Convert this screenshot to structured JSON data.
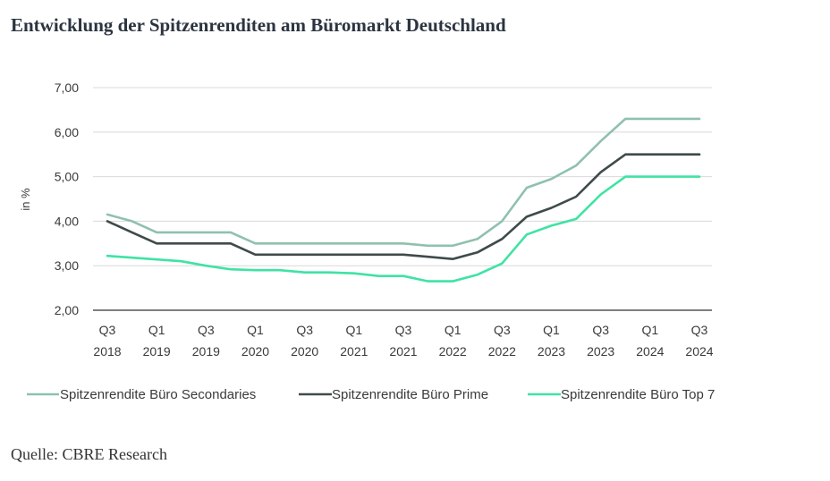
{
  "title": "Entwicklung der Spitzenrenditen am Büromarkt Deutschland",
  "source": "Quelle: CBRE Research",
  "colors": {
    "secondaries": "#8fc1ae",
    "prime": "#404a4b",
    "top7": "#3fe3a3",
    "grid": "#d8d8d8",
    "baseline": "#555555"
  },
  "chart_data": {
    "type": "line",
    "ylabel": "in %",
    "ylim": [
      2,
      7
    ],
    "yticks": [
      2,
      3,
      4,
      5,
      6,
      7
    ],
    "ytick_labels": [
      "2,00",
      "3,00",
      "4,00",
      "5,00",
      "6,00",
      "7,00"
    ],
    "grid": true,
    "legend_position": "bottom",
    "x": [
      "Q3 2018",
      "Q4 2018",
      "Q1 2019",
      "Q2 2019",
      "Q3 2019",
      "Q4 2019",
      "Q1 2020",
      "Q2 2020",
      "Q3 2020",
      "Q4 2020",
      "Q1 2021",
      "Q2 2021",
      "Q3 2021",
      "Q4 2021",
      "Q1 2022",
      "Q2 2022",
      "Q3 2022",
      "Q4 2022",
      "Q1 2023",
      "Q2 2023",
      "Q3 2023",
      "Q4 2023",
      "Q1 2024",
      "Q2 2024",
      "Q3 2024"
    ],
    "xtick_labels": [
      {
        "quarter": "Q3",
        "year": "2018"
      },
      {
        "quarter": "Q1",
        "year": "2019"
      },
      {
        "quarter": "Q3",
        "year": "2019"
      },
      {
        "quarter": "Q1",
        "year": "2020"
      },
      {
        "quarter": "Q3",
        "year": "2020"
      },
      {
        "quarter": "Q1",
        "year": "2021"
      },
      {
        "quarter": "Q3",
        "year": "2021"
      },
      {
        "quarter": "Q1",
        "year": "2022"
      },
      {
        "quarter": "Q3",
        "year": "2022"
      },
      {
        "quarter": "Q1",
        "year": "2023"
      },
      {
        "quarter": "Q3",
        "year": "2023"
      },
      {
        "quarter": "Q1",
        "year": "2024"
      },
      {
        "quarter": "Q3",
        "year": "2024"
      }
    ],
    "series": [
      {
        "name": "Spitzenrendite Büro Secondaries",
        "color_key": "secondaries",
        "values": [
          4.15,
          4.0,
          3.75,
          3.75,
          3.75,
          3.75,
          3.5,
          3.5,
          3.5,
          3.5,
          3.5,
          3.5,
          3.5,
          3.45,
          3.45,
          3.6,
          4.0,
          4.75,
          4.95,
          5.25,
          5.8,
          6.3,
          6.3,
          6.3,
          6.3
        ]
      },
      {
        "name": "Spitzenrendite Büro Prime",
        "color_key": "prime",
        "values": [
          4.0,
          3.75,
          3.5,
          3.5,
          3.5,
          3.5,
          3.25,
          3.25,
          3.25,
          3.25,
          3.25,
          3.25,
          3.25,
          3.2,
          3.15,
          3.3,
          3.6,
          4.1,
          4.3,
          4.55,
          5.1,
          5.5,
          5.5,
          5.5,
          5.5
        ]
      },
      {
        "name": "Spitzenrendite Büro Top 7",
        "color_key": "top7",
        "values": [
          3.22,
          3.18,
          3.14,
          3.1,
          3.0,
          2.92,
          2.9,
          2.9,
          2.85,
          2.85,
          2.83,
          2.77,
          2.77,
          2.65,
          2.65,
          2.8,
          3.05,
          3.7,
          3.9,
          4.05,
          4.6,
          5.0,
          5.0,
          5.0,
          5.0
        ]
      }
    ]
  }
}
